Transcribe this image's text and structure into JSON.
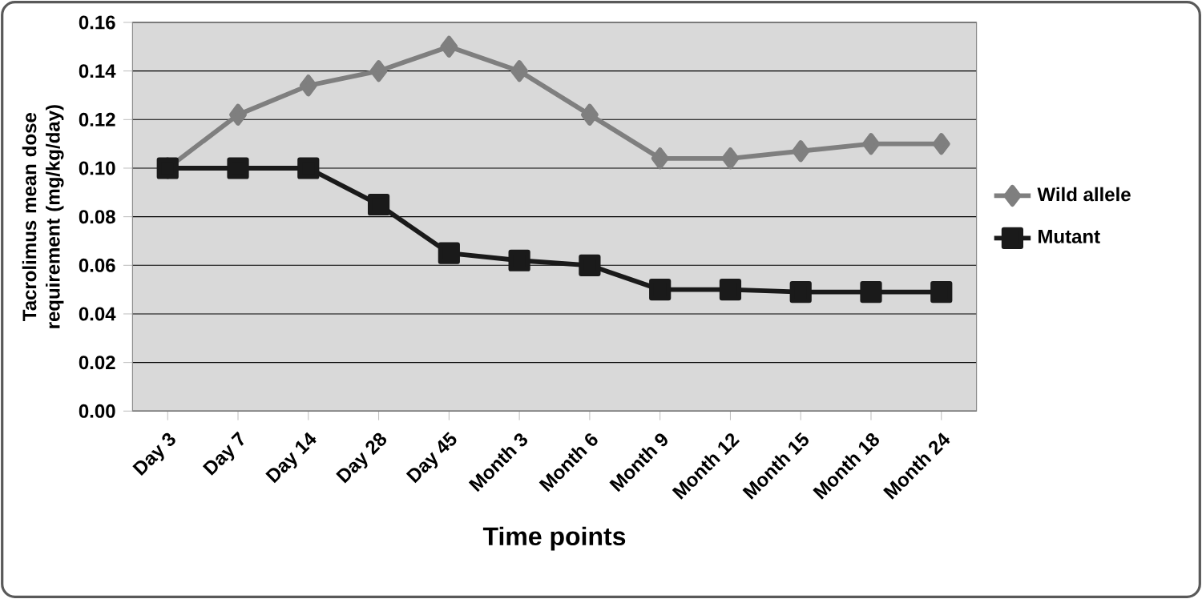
{
  "chart_data": {
    "type": "line",
    "xlabel": "Time points",
    "ylabel": "Tacrolimus mean dose requirement (mg/kg/day)",
    "categories": [
      "Day 3",
      "Day 7",
      "Day 14",
      "Day 28",
      "Day 45",
      "Month 3",
      "Month 6",
      "Month 9",
      "Month 12",
      "Month 15",
      "Month 18",
      "Month 24"
    ],
    "series": [
      {
        "name": "Wild allele",
        "color": "#7f7f7f",
        "marker": "diamond",
        "values": [
          0.1,
          0.122,
          0.134,
          0.14,
          0.15,
          0.14,
          0.122,
          0.104,
          0.104,
          0.107,
          0.11,
          0.11
        ]
      },
      {
        "name": "Mutant",
        "color": "#1a1a1a",
        "marker": "square",
        "values": [
          0.1,
          0.1,
          0.1,
          0.085,
          0.065,
          0.062,
          0.06,
          0.05,
          0.05,
          0.049,
          0.049,
          0.049
        ]
      }
    ],
    "ylim": [
      0,
      0.16
    ],
    "yticks": [
      {
        "value": 0,
        "label": "0.00"
      },
      {
        "value": 0.02,
        "label": "0.02"
      },
      {
        "value": 0.04,
        "label": "0.04"
      },
      {
        "value": 0.06,
        "label": "0.06"
      },
      {
        "value": 0.08,
        "label": "0.08"
      },
      {
        "value": 0.1,
        "label": "0.10"
      },
      {
        "value": 0.12,
        "label": "0.12"
      },
      {
        "value": 0.14,
        "label": "0.14"
      },
      {
        "value": 0.16,
        "label": "0.16"
      }
    ],
    "grid": "y",
    "legend": "right"
  }
}
